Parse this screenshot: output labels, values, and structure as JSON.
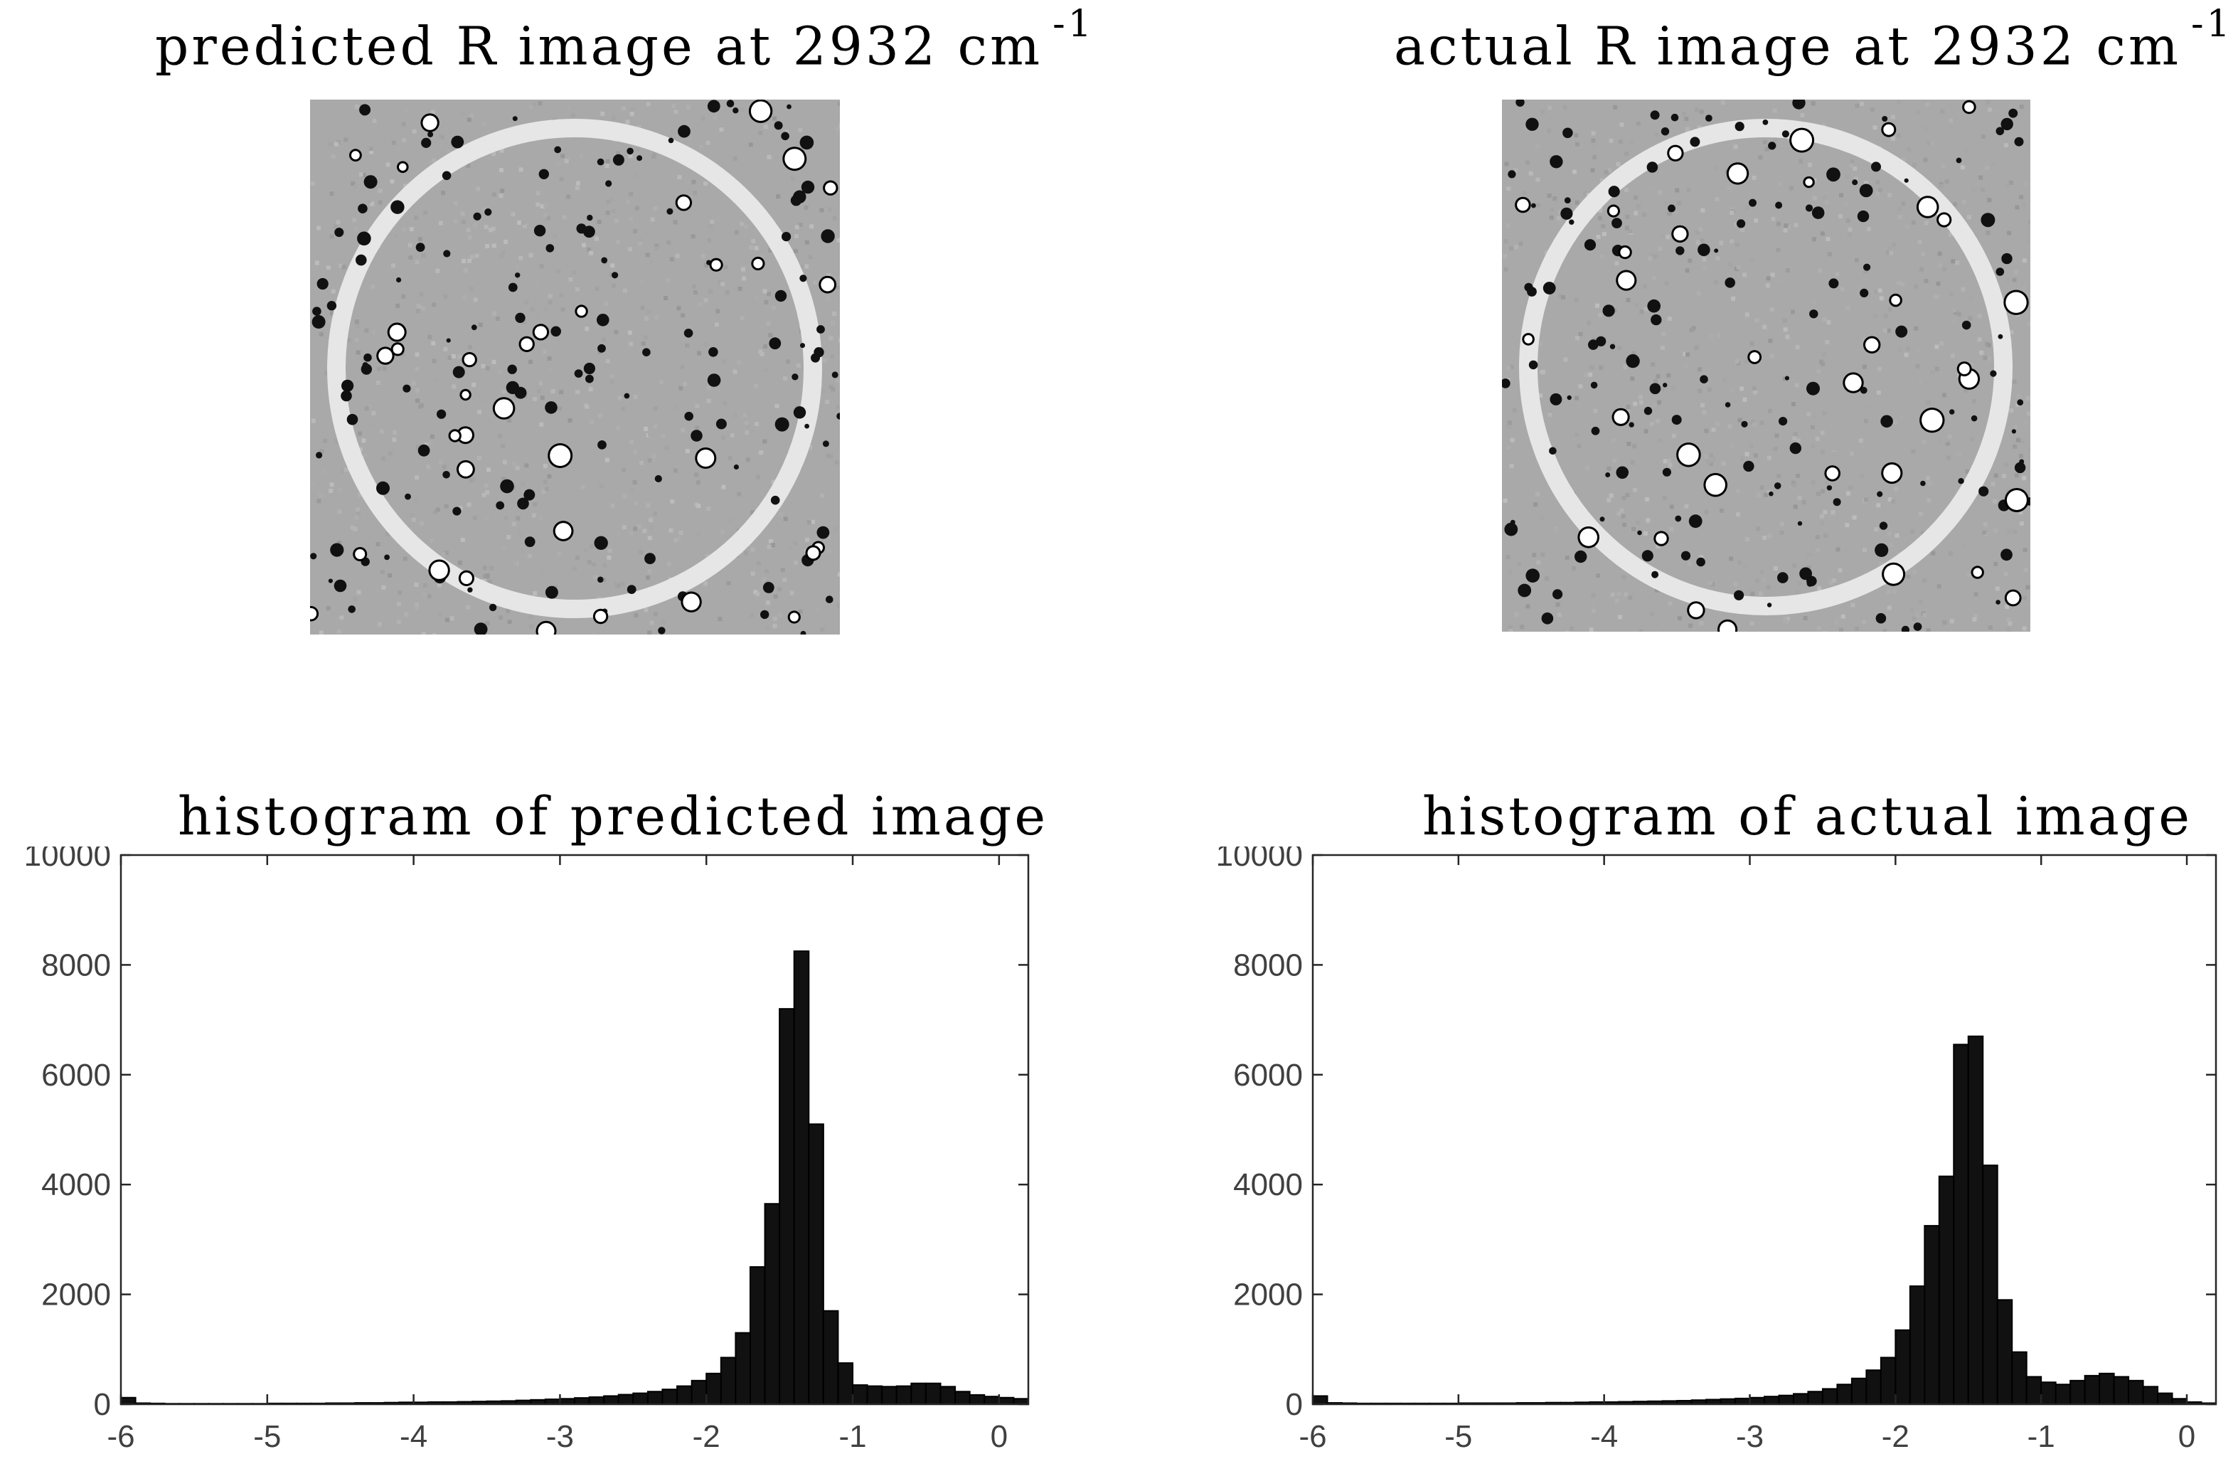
{
  "figure": {
    "panels": {
      "predicted_image": {
        "title": "predicted R image at 2932 cm",
        "title_sup": "-1"
      },
      "actual_image": {
        "title": "actual R image at 2932 cm",
        "title_sup": "-1"
      }
    }
  },
  "colors": {
    "image_background": "#a9a9a9",
    "ring": "#e6e6e6",
    "bar_fill": "#111111",
    "axis": "#262626",
    "tick_label": "#404040"
  },
  "chart_data": [
    {
      "type": "bar",
      "title": "histogram of predicted image",
      "xlabel": "",
      "ylabel": "",
      "xlim": [
        -6,
        0.2
      ],
      "ylim": [
        0,
        10000
      ],
      "xticks": [
        -6,
        -5,
        -4,
        -3,
        -2,
        -1,
        0
      ],
      "yticks": [
        0,
        2000,
        4000,
        6000,
        8000,
        10000
      ],
      "grid": false,
      "bin_width": 0.1,
      "bin_start": -6.0,
      "values": [
        120,
        20,
        15,
        10,
        10,
        10,
        10,
        10,
        10,
        10,
        15,
        15,
        15,
        15,
        20,
        20,
        25,
        25,
        30,
        35,
        35,
        40,
        40,
        45,
        50,
        55,
        60,
        70,
        80,
        90,
        100,
        115,
        130,
        150,
        175,
        200,
        230,
        270,
        330,
        430,
        560,
        850,
        1300,
        2500,
        3650,
        7200,
        8250,
        5100,
        1700,
        750,
        350,
        330,
        320,
        330,
        380,
        380,
        320,
        230,
        170,
        140,
        120,
        100
      ]
    },
    {
      "type": "bar",
      "title": "histogram of actual image",
      "xlabel": "",
      "ylabel": "",
      "xlim": [
        -6,
        0.2
      ],
      "ylim": [
        0,
        10000
      ],
      "xticks": [
        -6,
        -5,
        -4,
        -3,
        -2,
        -1,
        0
      ],
      "yticks": [
        0,
        2000,
        4000,
        6000,
        8000,
        10000
      ],
      "grid": false,
      "bin_width": 0.1,
      "bin_start": -6.0,
      "values": [
        150,
        25,
        20,
        15,
        15,
        15,
        15,
        15,
        15,
        15,
        20,
        20,
        20,
        20,
        25,
        25,
        30,
        30,
        35,
        40,
        40,
        45,
        50,
        55,
        60,
        65,
        75,
        85,
        95,
        105,
        120,
        140,
        160,
        190,
        230,
        280,
        360,
        470,
        620,
        850,
        1350,
        2150,
        3250,
        4150,
        6550,
        6700,
        4350,
        1900,
        950,
        500,
        400,
        360,
        430,
        520,
        560,
        500,
        430,
        320,
        200,
        100,
        40,
        20
      ]
    }
  ]
}
